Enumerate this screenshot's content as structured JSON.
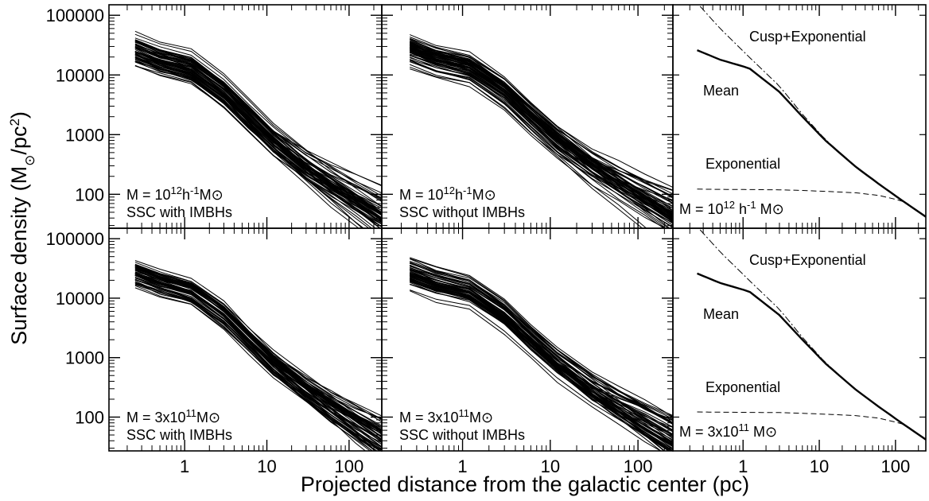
{
  "chart_data": {
    "type": "line",
    "layout": "2x3 panel grid, shared axes",
    "xlabel": "Projected distance from the galactic center (pc)",
    "ylabel_parts": [
      "Surface density (M",
      "⊙",
      "/pc",
      "2",
      ")"
    ],
    "xscale": "log",
    "yscale": "log",
    "xlim": [
      0.12,
      250
    ],
    "ylim": [
      27,
      150000
    ],
    "x_ticks": [
      1,
      10,
      100
    ],
    "x_tick_labels": [
      "1",
      "10",
      "100"
    ],
    "y_ticks": [
      100,
      1000,
      10000,
      100000
    ],
    "y_tick_labels": [
      "100",
      "1000",
      "10000",
      "100000"
    ],
    "radii_pc": [
      0.25,
      0.5,
      1.2,
      3,
      6,
      12,
      30,
      60,
      120,
      250
    ],
    "mean_profile": [
      26000,
      18000,
      13000,
      5200,
      2000,
      800,
      290,
      150,
      80,
      42
    ],
    "cusp_exponential": [
      160000,
      60000,
      20000,
      6500,
      2200,
      830,
      290,
      150,
      80,
      42
    ],
    "exponential": [
      122,
      121,
      120,
      119,
      116,
      112,
      106,
      96,
      78,
      42
    ],
    "ensemble_spread_dex": {
      "with_imbhs": 0.17,
      "without_imbhs": 0.18
    },
    "ensemble_count": 60,
    "panels": [
      {
        "row": 0,
        "col": 0,
        "kind": "ensemble",
        "variant": "with_imbhs",
        "mass_text": {
          "prefix": "M = 10",
          "sup": "12",
          "mid": "h",
          "sup2": "-1",
          "end": "M⊙"
        },
        "model_text": "SSC with IMBHs"
      },
      {
        "row": 0,
        "col": 1,
        "kind": "ensemble",
        "variant": "without_imbhs",
        "mass_text": {
          "prefix": "M = 10",
          "sup": "12",
          "mid": "h",
          "sup2": "-1",
          "end": "M⊙"
        },
        "model_text": "SSC without IMBHs"
      },
      {
        "row": 0,
        "col": 2,
        "kind": "mean",
        "mass_text": {
          "prefix": "M = 10",
          "sup": "12",
          "mid": " h",
          "sup2": "-1",
          "end": " M⊙"
        },
        "curve_labels": {
          "cusp": "Cusp+Exponential",
          "mean": "Mean",
          "exp": "Exponential"
        }
      },
      {
        "row": 1,
        "col": 0,
        "kind": "ensemble",
        "variant": "with_imbhs",
        "mass_text": {
          "prefix": "M = 3x10",
          "sup": "11",
          "mid": "",
          "sup2": "",
          "end": "M⊙"
        },
        "model_text": "SSC with IMBHs"
      },
      {
        "row": 1,
        "col": 1,
        "kind": "ensemble",
        "variant": "without_imbhs",
        "mass_text": {
          "prefix": "M = 3x10",
          "sup": "11",
          "mid": "",
          "sup2": "",
          "end": "M⊙"
        },
        "model_text": "SSC without IMBHs"
      },
      {
        "row": 1,
        "col": 2,
        "kind": "mean",
        "mass_text": {
          "prefix": "M = 3x10",
          "sup": "11",
          "mid": "",
          "sup2": "",
          "end": " M⊙"
        },
        "curve_labels": {
          "cusp": "Cusp+Exponential",
          "mean": "Mean",
          "exp": "Exponential"
        }
      }
    ],
    "colors": {
      "lines": "#000000",
      "frame": "#000000",
      "background": "#ffffff"
    }
  }
}
